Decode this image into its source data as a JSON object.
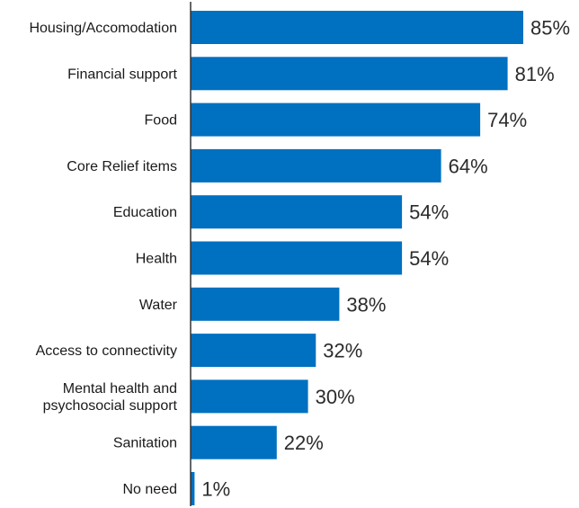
{
  "chart_data": {
    "type": "bar",
    "orientation": "horizontal",
    "categories": [
      "Housing/Accomodation",
      "Financial support",
      "Food",
      "Core Relief items",
      "Education",
      "Health",
      "Water",
      "Access to connectivity",
      "Mental health and psychosocial support",
      "Sanitation",
      "No need"
    ],
    "category_lines": [
      [
        "Housing/Accomodation"
      ],
      [
        "Financial support"
      ],
      [
        "Food"
      ],
      [
        "Core Relief items"
      ],
      [
        "Education"
      ],
      [
        "Health"
      ],
      [
        "Water"
      ],
      [
        "Access to connectivity"
      ],
      [
        "Mental health and",
        "psychosocial support"
      ],
      [
        "Sanitation"
      ],
      [
        "No need"
      ]
    ],
    "values": [
      85,
      81,
      74,
      64,
      54,
      54,
      38,
      32,
      30,
      22,
      1
    ],
    "value_labels": [
      "85%",
      "81%",
      "74%",
      "64%",
      "54%",
      "54%",
      "38%",
      "32%",
      "30%",
      "22%",
      "1%"
    ],
    "xlim": [
      0,
      85
    ],
    "bar_color": "#0070c0",
    "axis_color": "#333333",
    "grid": false,
    "legend": "none"
  }
}
